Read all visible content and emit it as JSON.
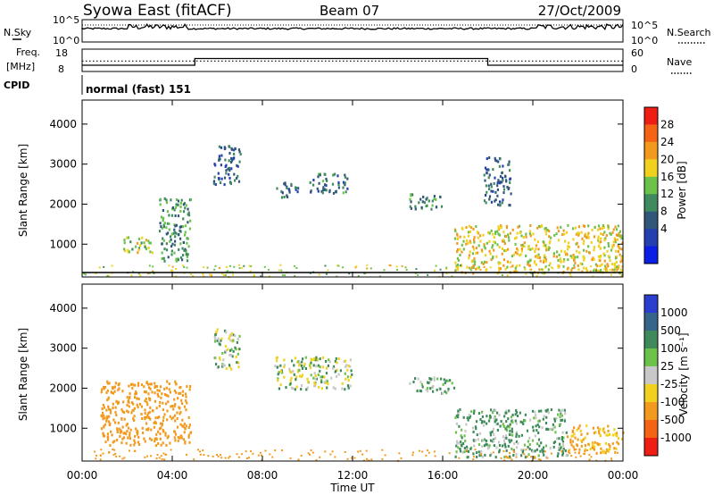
{
  "header": {
    "station": "Syowa East (fitACF)",
    "beam": "Beam 07",
    "date": "27/Oct/2009"
  },
  "top_panels": {
    "nsky_label": "N.Sky",
    "nsearch_label": "N.Search",
    "noise_ticks_left": [
      "10^5",
      "10^0"
    ],
    "noise_ticks_right": [
      "10^5",
      "10^0"
    ],
    "freq_label": "Freq.",
    "freq_unit": "[MHz]",
    "freq_ticks": [
      "18",
      "8"
    ],
    "nave_label": "Nave",
    "nave_ticks": [
      "60",
      "0"
    ],
    "cpid_label": "CPID",
    "cpid_value": "normal (fast) 151"
  },
  "colorbars": {
    "power": {
      "title": "Power [dB]",
      "ticks": [
        "28",
        "24",
        "20",
        "16",
        "12",
        "8",
        "4"
      ],
      "colors": [
        "#0a1ee6",
        "#243fb0",
        "#30577a",
        "#3f8a5e",
        "#6cc24b",
        "#f0d21e",
        "#f29a1e",
        "#f46414",
        "#ee1e14"
      ]
    },
    "velocity": {
      "title": "Velocity [m s⁻¹]",
      "ticks": [
        "1000",
        "500",
        "100",
        "25",
        "-25",
        "-100",
        "-500",
        "-1000"
      ],
      "colors": [
        "#2a3fd0",
        "#36658a",
        "#3e8a5a",
        "#6cc24b",
        "#c8c8c8",
        "#f0d21e",
        "#f29a1e",
        "#f46414",
        "#ee1e14"
      ]
    }
  },
  "axes": {
    "ylabel": "Slant Range [km]",
    "yticks": [
      "4000",
      "3000",
      "2000",
      "1000"
    ],
    "xticks": [
      "00:00",
      "04:00",
      "08:00",
      "12:00",
      "16:00",
      "20:00",
      "00:00"
    ],
    "xlabel": "Time UT"
  },
  "chart_data": [
    {
      "type": "line",
      "name": "noise",
      "series": [
        {
          "name": "N.Sky"
        },
        {
          "name": "N.Search"
        }
      ]
    },
    {
      "type": "line",
      "name": "frequency-nave",
      "x_hours": [
        0,
        5,
        5,
        18,
        18,
        24
      ],
      "freq_mhz": [
        10.8,
        10.8,
        13.8,
        13.8,
        10.8,
        10.8
      ],
      "nave": [
        28,
        28,
        28,
        28,
        28,
        28
      ]
    },
    {
      "type": "heatmap",
      "name": "power",
      "x_range_hours": [
        0,
        24
      ],
      "ylim_km": [
        180,
        4600
      ],
      "colorbar_range_db": [
        0,
        32
      ],
      "echo_regions": [
        {
          "t": [
            1.8,
            3.2
          ],
          "r": [
            800,
            1200
          ],
          "v": 18
        },
        {
          "t": [
            3.4,
            4.8
          ],
          "r": [
            600,
            2200
          ],
          "v": 12
        },
        {
          "t": [
            5.8,
            7.0
          ],
          "r": [
            2500,
            3500
          ],
          "v": 8
        },
        {
          "t": [
            8.6,
            9.6
          ],
          "r": [
            2200,
            2600
          ],
          "v": 8
        },
        {
          "t": [
            10.0,
            11.8
          ],
          "r": [
            2300,
            2800
          ],
          "v": 10
        },
        {
          "t": [
            14.5,
            16.0
          ],
          "r": [
            1900,
            2300
          ],
          "v": 12
        },
        {
          "t": [
            16.5,
            24.0
          ],
          "r": [
            300,
            1500
          ],
          "v": 20
        },
        {
          "t": [
            17.8,
            19.0
          ],
          "r": [
            2000,
            3200
          ],
          "v": 8
        }
      ]
    },
    {
      "type": "heatmap",
      "name": "velocity",
      "x_range_hours": [
        0,
        24
      ],
      "ylim_km": [
        180,
        4600
      ],
      "colorbar_range_ms": [
        -1000,
        1000
      ],
      "echo_regions": [
        {
          "t": [
            0.8,
            4.8
          ],
          "r": [
            600,
            2200
          ],
          "v": -500
        },
        {
          "t": [
            5.8,
            7.0
          ],
          "r": [
            2500,
            3500
          ],
          "v": 0
        },
        {
          "t": [
            8.5,
            12.0
          ],
          "r": [
            2000,
            2800
          ],
          "v": 0
        },
        {
          "t": [
            14.5,
            16.5
          ],
          "r": [
            1900,
            2300
          ],
          "v": 100
        },
        {
          "t": [
            16.5,
            21.5
          ],
          "r": [
            300,
            1500
          ],
          "v": 100
        },
        {
          "t": [
            21.5,
            24.0
          ],
          "r": [
            400,
            1100
          ],
          "v": -300
        }
      ]
    }
  ]
}
